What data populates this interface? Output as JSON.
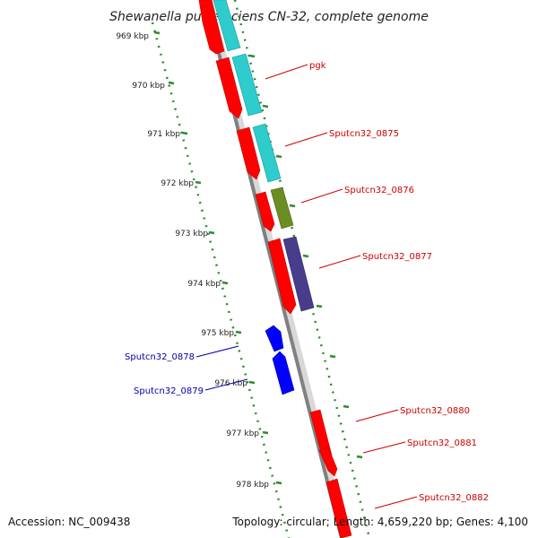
{
  "title": "Shewanella putrefaciens CN-32, complete genome",
  "footer": {
    "accession": "Accession: NC_009438",
    "topology": "Topology: circular; Length: 4,659,220 bp; Genes: 4,100"
  },
  "colors": {
    "backbone": "#808080",
    "dots": "#2e8b2e",
    "cds": "#ff0000",
    "teal": "#2ecccc",
    "olive": "#6b8e23",
    "purple": "#483d8b",
    "reverse": "#0000ff",
    "label_forward": "#cc0000",
    "label_reverse": "#0000aa"
  },
  "ticks": [
    "969 kbp",
    "970 kbp",
    "971 kbp",
    "972 kbp",
    "973 kbp",
    "974 kbp",
    "975 kbp",
    "976 kbp",
    "977 kbp",
    "978 kbp"
  ],
  "genes": [
    {
      "label": "pgk",
      "strand": "forward"
    },
    {
      "label": "Sputcn32_0875",
      "strand": "forward"
    },
    {
      "label": "Sputcn32_0876",
      "strand": "forward"
    },
    {
      "label": "Sputcn32_0877",
      "strand": "forward"
    },
    {
      "label": "Sputcn32_0878",
      "strand": "reverse"
    },
    {
      "label": "Sputcn32_0879",
      "strand": "reverse"
    },
    {
      "label": "Sputcn32_0880",
      "strand": "forward"
    },
    {
      "label": "Sputcn32_0881",
      "strand": "forward"
    },
    {
      "label": "Sputcn32_0882",
      "strand": "forward"
    }
  ]
}
